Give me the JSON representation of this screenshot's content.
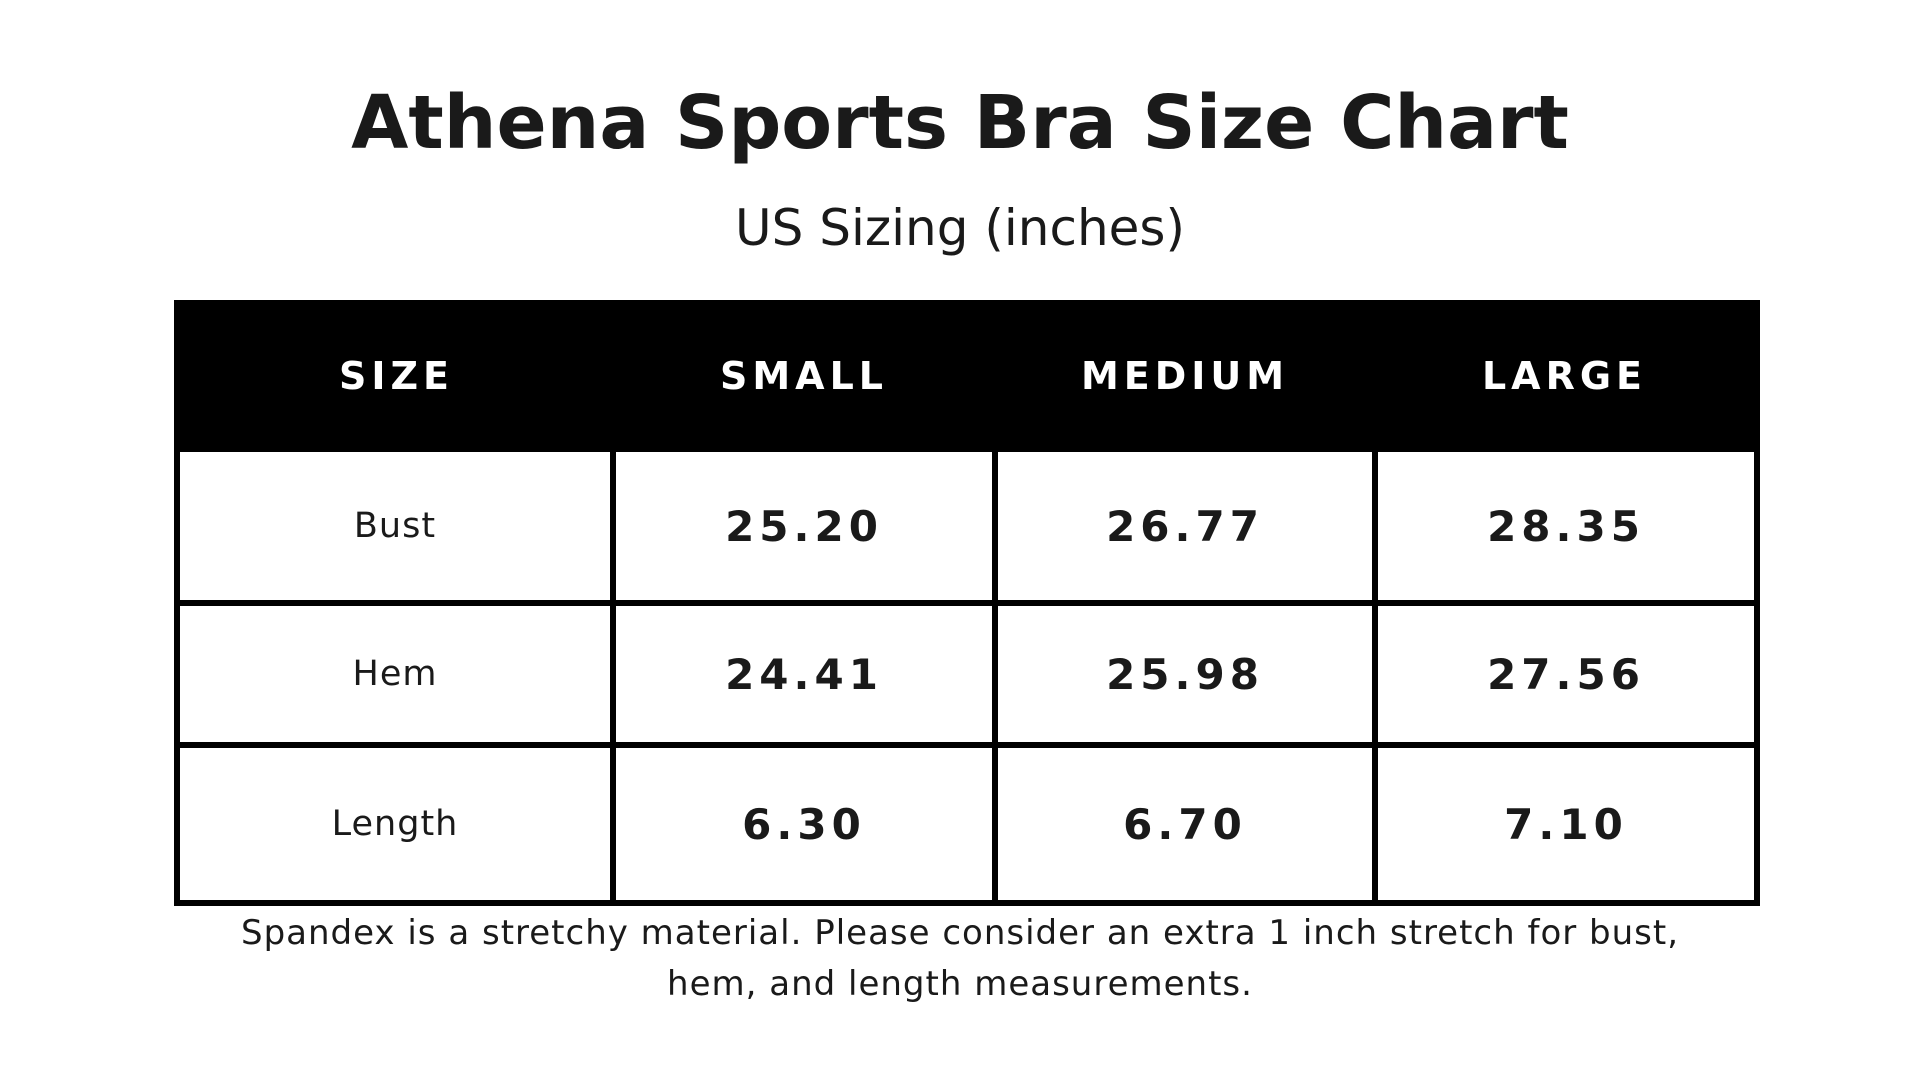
{
  "title": "Athena Sports Bra Size Chart",
  "subtitle": "US Sizing (inches)",
  "table": {
    "header": {
      "label": "SIZE",
      "sizes": [
        "SMALL",
        "MEDIUM",
        "LARGE"
      ]
    },
    "rows": [
      {
        "label": "Bust",
        "values": [
          "25.20",
          "26.77",
          "28.35"
        ]
      },
      {
        "label": "Hem",
        "values": [
          "24.41",
          "25.98",
          "27.56"
        ]
      },
      {
        "label": "Length",
        "values": [
          "6.30",
          "6.70",
          "7.10"
        ]
      }
    ]
  },
  "note": "Spandex is a stretchy material. Please consider an extra 1 inch stretch for bust, hem, and length measurements.",
  "colors": {
    "header_background": "#000000",
    "header_text": "#ffffff",
    "text": "#1a1a1a",
    "background": "#ffffff"
  }
}
